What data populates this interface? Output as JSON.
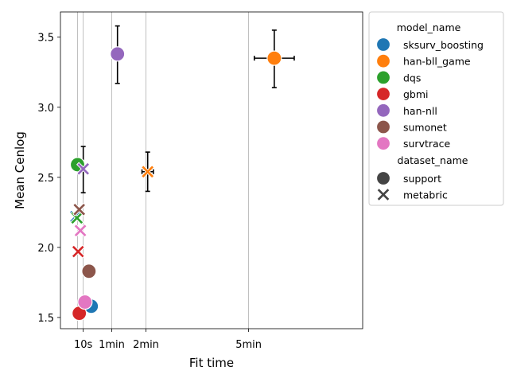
{
  "chart_data": {
    "type": "scatter",
    "xlabel": "Fit time",
    "ylabel": "Mean Cenlog",
    "x_unit": "seconds",
    "xlim": [
      -30,
      500
    ],
    "ylim": [
      1.42,
      3.68
    ],
    "grid": "x-only",
    "x_ticks": [
      {
        "value": 10,
        "label": "10s"
      },
      {
        "value": 60,
        "label": "1min"
      },
      {
        "value": 120,
        "label": "2min"
      },
      {
        "value": 300,
        "label": "5min"
      }
    ],
    "y_ticks": [
      {
        "value": 1.5,
        "label": "1.5"
      },
      {
        "value": 2.0,
        "label": "2.0"
      },
      {
        "value": 2.5,
        "label": "2.5"
      },
      {
        "value": 3.0,
        "label": "3.0"
      },
      {
        "value": 3.5,
        "label": "3.5"
      }
    ],
    "extra_gridlines_x": [
      0
    ],
    "legend": {
      "placement": "outside-right",
      "hue_title": "model_name",
      "style_title": "dataset_name",
      "models": [
        {
          "name": "sksurv_boosting",
          "color": "#1f77b4"
        },
        {
          "name": "han-bll_game",
          "color": "#ff7f0e"
        },
        {
          "name": "dqs",
          "color": "#2ca02c"
        },
        {
          "name": "gbmi",
          "color": "#d62728"
        },
        {
          "name": "han-nll",
          "color": "#9467bd"
        },
        {
          "name": "sumonet",
          "color": "#8c564b"
        },
        {
          "name": "survtrace",
          "color": "#e377c2"
        }
      ],
      "datasets": [
        {
          "name": "support",
          "marker": "circle"
        },
        {
          "name": "metabric",
          "marker": "x"
        }
      ]
    },
    "series": [
      {
        "model": "sksurv_boosting",
        "dataset": "support",
        "x": 24,
        "y": 1.58
      },
      {
        "model": "sksurv_boosting",
        "dataset": "metabric",
        "x": -3,
        "y": 2.22
      },
      {
        "model": "han-bll_game",
        "dataset": "support",
        "x": 345,
        "y": 3.35,
        "yerr": [
          3.14,
          3.55
        ],
        "xerr": [
          310,
          380
        ]
      },
      {
        "model": "han-bll_game",
        "dataset": "metabric",
        "x": 123,
        "y": 2.54,
        "yerr": [
          2.4,
          2.68
        ],
        "xerr": [
          113,
          133
        ]
      },
      {
        "model": "dqs",
        "dataset": "support",
        "x": 0,
        "y": 2.59
      },
      {
        "model": "dqs",
        "dataset": "metabric",
        "x": -1,
        "y": 2.21
      },
      {
        "model": "gbmi",
        "dataset": "support",
        "x": 3,
        "y": 1.53
      },
      {
        "model": "gbmi",
        "dataset": "metabric",
        "x": 1,
        "y": 1.97
      },
      {
        "model": "han-nll",
        "dataset": "support",
        "x": 70,
        "y": 3.38,
        "yerr": [
          3.17,
          3.58
        ]
      },
      {
        "model": "han-nll",
        "dataset": "metabric",
        "x": 10,
        "y": 2.56,
        "yerr": [
          2.39,
          2.72
        ]
      },
      {
        "model": "sumonet",
        "dataset": "support",
        "x": 20,
        "y": 1.83
      },
      {
        "model": "sumonet",
        "dataset": "metabric",
        "x": 3,
        "y": 2.27
      },
      {
        "model": "survtrace",
        "dataset": "support",
        "x": 13,
        "y": 1.61
      },
      {
        "model": "survtrace",
        "dataset": "metabric",
        "x": 5,
        "y": 2.12
      }
    ]
  }
}
